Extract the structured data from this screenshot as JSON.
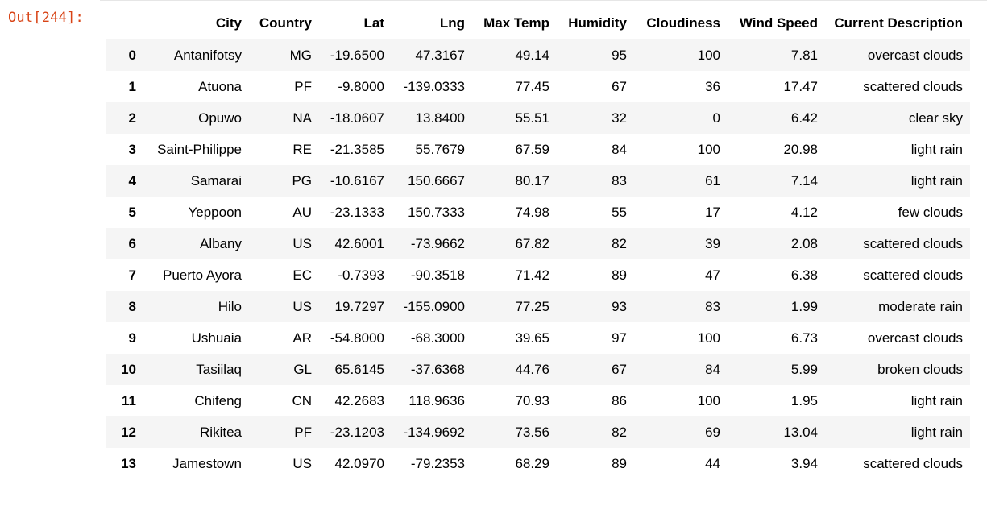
{
  "cell": {
    "prompt": "Out[244]:"
  },
  "table": {
    "index_header": "",
    "columns": [
      "City",
      "Country",
      "Lat",
      "Lng",
      "Max Temp",
      "Humidity",
      "Cloudiness",
      "Wind Speed",
      "Current Description"
    ],
    "rows": [
      {
        "index": "0",
        "cells": [
          "Antanifotsy",
          "MG",
          "-19.6500",
          "47.3167",
          "49.14",
          "95",
          "100",
          "7.81",
          "overcast clouds"
        ]
      },
      {
        "index": "1",
        "cells": [
          "Atuona",
          "PF",
          "-9.8000",
          "-139.0333",
          "77.45",
          "67",
          "36",
          "17.47",
          "scattered clouds"
        ]
      },
      {
        "index": "2",
        "cells": [
          "Opuwo",
          "NA",
          "-18.0607",
          "13.8400",
          "55.51",
          "32",
          "0",
          "6.42",
          "clear sky"
        ]
      },
      {
        "index": "3",
        "cells": [
          "Saint-Philippe",
          "RE",
          "-21.3585",
          "55.7679",
          "67.59",
          "84",
          "100",
          "20.98",
          "light rain"
        ]
      },
      {
        "index": "4",
        "cells": [
          "Samarai",
          "PG",
          "-10.6167",
          "150.6667",
          "80.17",
          "83",
          "61",
          "7.14",
          "light rain"
        ]
      },
      {
        "index": "5",
        "cells": [
          "Yeppoon",
          "AU",
          "-23.1333",
          "150.7333",
          "74.98",
          "55",
          "17",
          "4.12",
          "few clouds"
        ]
      },
      {
        "index": "6",
        "cells": [
          "Albany",
          "US",
          "42.6001",
          "-73.9662",
          "67.82",
          "82",
          "39",
          "2.08",
          "scattered clouds"
        ]
      },
      {
        "index": "7",
        "cells": [
          "Puerto Ayora",
          "EC",
          "-0.7393",
          "-90.3518",
          "71.42",
          "89",
          "47",
          "6.38",
          "scattered clouds"
        ]
      },
      {
        "index": "8",
        "cells": [
          "Hilo",
          "US",
          "19.7297",
          "-155.0900",
          "77.25",
          "93",
          "83",
          "1.99",
          "moderate rain"
        ]
      },
      {
        "index": "9",
        "cells": [
          "Ushuaia",
          "AR",
          "-54.8000",
          "-68.3000",
          "39.65",
          "97",
          "100",
          "6.73",
          "overcast clouds"
        ]
      },
      {
        "index": "10",
        "cells": [
          "Tasiilaq",
          "GL",
          "65.6145",
          "-37.6368",
          "44.76",
          "67",
          "84",
          "5.99",
          "broken clouds"
        ]
      },
      {
        "index": "11",
        "cells": [
          "Chifeng",
          "CN",
          "42.2683",
          "118.9636",
          "70.93",
          "86",
          "100",
          "1.95",
          "light rain"
        ]
      },
      {
        "index": "12",
        "cells": [
          "Rikitea",
          "PF",
          "-23.1203",
          "-134.9692",
          "73.56",
          "82",
          "69",
          "13.04",
          "light rain"
        ]
      },
      {
        "index": "13",
        "cells": [
          "Jamestown",
          "US",
          "42.0970",
          "-79.2353",
          "68.29",
          "89",
          "44",
          "3.94",
          "scattered clouds"
        ]
      }
    ]
  }
}
